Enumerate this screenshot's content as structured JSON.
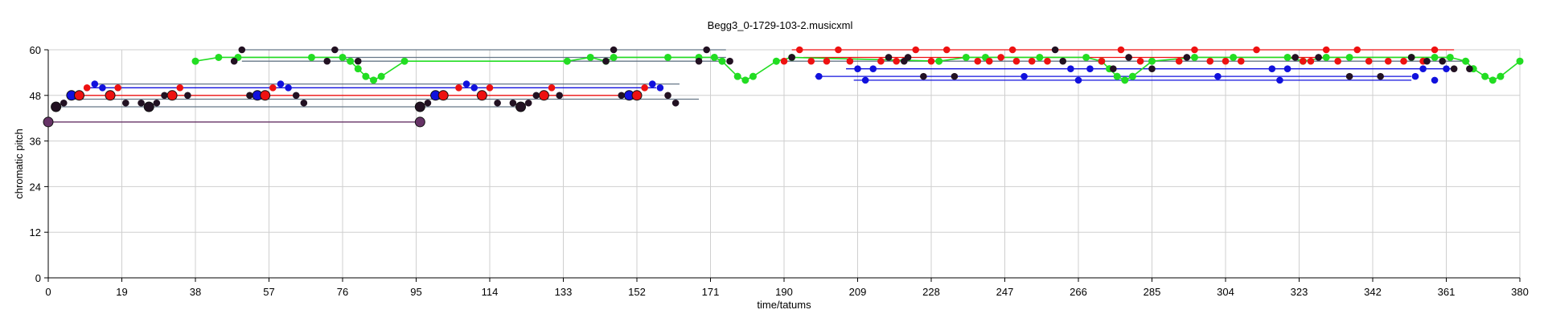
{
  "chart_data": {
    "type": "scatter",
    "title": "Begg3_0-1729-103-2.musicxml",
    "xlabel": "time/tatums",
    "ylabel": "chromatic pitch",
    "xlim": [
      0,
      380
    ],
    "ylim": [
      0,
      60
    ],
    "xticks": [
      0,
      19,
      38,
      57,
      76,
      95,
      114,
      133,
      152,
      171,
      190,
      209,
      228,
      247,
      266,
      285,
      304,
      323,
      342,
      361,
      380
    ],
    "yticks": [
      0,
      12,
      24,
      36,
      48,
      60
    ],
    "grid": true,
    "colors": {
      "green": "#22dd22",
      "red": "#ee1111",
      "blue": "#1111dd",
      "black": "#221122",
      "gray": "#667788",
      "purple": "#663366"
    },
    "spans": [
      {
        "color": "purple",
        "x0": 0,
        "x1": 96,
        "y": 41
      },
      {
        "color": "gray",
        "x0": 2,
        "x1": 122,
        "y": 45
      },
      {
        "color": "gray",
        "x0": 6,
        "x1": 168,
        "y": 47
      },
      {
        "color": "red",
        "x0": 8,
        "x1": 152,
        "y": 48
      },
      {
        "color": "blue",
        "x0": 10,
        "x1": 157,
        "y": 50
      },
      {
        "color": "gray",
        "x0": 12,
        "x1": 163,
        "y": 51
      },
      {
        "color": "gray",
        "x0": 48,
        "x1": 175,
        "y": 58
      },
      {
        "color": "gray",
        "x0": 50,
        "x1": 175,
        "y": 57
      },
      {
        "color": "gray",
        "x0": 50,
        "x1": 175,
        "y": 60
      },
      {
        "color": "gray",
        "x0": 190,
        "x1": 367,
        "y": 57
      },
      {
        "color": "red",
        "x0": 192,
        "x1": 363,
        "y": 60
      },
      {
        "color": "red",
        "x0": 195,
        "x1": 361,
        "y": 58
      },
      {
        "color": "blue",
        "x0": 198,
        "x1": 352,
        "y": 53
      },
      {
        "color": "blue",
        "x0": 206,
        "x1": 363,
        "y": 55
      },
      {
        "color": "blue",
        "x0": 208,
        "x1": 352,
        "y": 52
      }
    ],
    "series": [
      {
        "color": "green",
        "points": [
          [
            38,
            57
          ],
          [
            44,
            58
          ],
          [
            49,
            58
          ],
          [
            68,
            58
          ],
          [
            76,
            58
          ],
          [
            78,
            57
          ],
          [
            80,
            55
          ],
          [
            82,
            53
          ],
          [
            84,
            52
          ],
          [
            86,
            53
          ],
          [
            92,
            57
          ],
          [
            134,
            57
          ],
          [
            140,
            58
          ],
          [
            144,
            57
          ],
          [
            146,
            58
          ],
          [
            160,
            58
          ],
          [
            168,
            58
          ],
          [
            172,
            58
          ],
          [
            174,
            57
          ],
          [
            178,
            53
          ],
          [
            180,
            52
          ],
          [
            182,
            53
          ],
          [
            188,
            57
          ],
          [
            192,
            58
          ],
          [
            230,
            57
          ],
          [
            237,
            58
          ],
          [
            242,
            58
          ],
          [
            256,
            58
          ],
          [
            268,
            58
          ],
          [
            272,
            57
          ],
          [
            274,
            55
          ],
          [
            276,
            53
          ],
          [
            278,
            52
          ],
          [
            280,
            53
          ],
          [
            285,
            57
          ],
          [
            296,
            58
          ],
          [
            306,
            58
          ],
          [
            320,
            58
          ],
          [
            324,
            57
          ],
          [
            330,
            58
          ],
          [
            336,
            58
          ],
          [
            352,
            58
          ],
          [
            358,
            58
          ],
          [
            362,
            58
          ],
          [
            366,
            57
          ],
          [
            368,
            55
          ],
          [
            371,
            53
          ],
          [
            373,
            52
          ],
          [
            375,
            53
          ],
          [
            380,
            57
          ]
        ]
      }
    ],
    "points": [
      {
        "color": "purple",
        "x": 0,
        "y": 41,
        "big": true
      },
      {
        "color": "purple",
        "x": 96,
        "y": 41,
        "big": true
      },
      {
        "color": "black",
        "x": 2,
        "y": 45,
        "big": true
      },
      {
        "color": "black",
        "x": 4,
        "y": 46
      },
      {
        "color": "blue",
        "x": 6,
        "y": 48,
        "big": true
      },
      {
        "color": "red",
        "x": 8,
        "y": 48,
        "big": true
      },
      {
        "color": "red",
        "x": 10,
        "y": 50
      },
      {
        "color": "blue",
        "x": 12,
        "y": 51
      },
      {
        "color": "blue",
        "x": 14,
        "y": 50
      },
      {
        "color": "red",
        "x": 16,
        "y": 48,
        "big": true
      },
      {
        "color": "red",
        "x": 18,
        "y": 50
      },
      {
        "color": "black",
        "x": 20,
        "y": 46
      },
      {
        "color": "black",
        "x": 24,
        "y": 46
      },
      {
        "color": "black",
        "x": 26,
        "y": 45,
        "big": true
      },
      {
        "color": "black",
        "x": 28,
        "y": 46
      },
      {
        "color": "black",
        "x": 30,
        "y": 48
      },
      {
        "color": "red",
        "x": 32,
        "y": 48,
        "big": true
      },
      {
        "color": "red",
        "x": 34,
        "y": 50
      },
      {
        "color": "black",
        "x": 36,
        "y": 48
      },
      {
        "color": "black",
        "x": 48,
        "y": 57
      },
      {
        "color": "black",
        "x": 50,
        "y": 60
      },
      {
        "color": "black",
        "x": 52,
        "y": 48
      },
      {
        "color": "blue",
        "x": 54,
        "y": 48,
        "big": true
      },
      {
        "color": "red",
        "x": 56,
        "y": 48,
        "big": true
      },
      {
        "color": "red",
        "x": 58,
        "y": 50
      },
      {
        "color": "blue",
        "x": 60,
        "y": 51
      },
      {
        "color": "blue",
        "x": 62,
        "y": 50
      },
      {
        "color": "black",
        "x": 64,
        "y": 48
      },
      {
        "color": "black",
        "x": 66,
        "y": 46
      },
      {
        "color": "black",
        "x": 72,
        "y": 57
      },
      {
        "color": "black",
        "x": 74,
        "y": 60
      },
      {
        "color": "black",
        "x": 80,
        "y": 57
      },
      {
        "color": "black",
        "x": 96,
        "y": 45,
        "big": true
      },
      {
        "color": "black",
        "x": 98,
        "y": 46
      },
      {
        "color": "blue",
        "x": 100,
        "y": 48,
        "big": true
      },
      {
        "color": "red",
        "x": 102,
        "y": 48,
        "big": true
      },
      {
        "color": "red",
        "x": 106,
        "y": 50
      },
      {
        "color": "blue",
        "x": 108,
        "y": 51
      },
      {
        "color": "blue",
        "x": 110,
        "y": 50
      },
      {
        "color": "red",
        "x": 112,
        "y": 48,
        "big": true
      },
      {
        "color": "red",
        "x": 114,
        "y": 50
      },
      {
        "color": "black",
        "x": 116,
        "y": 46
      },
      {
        "color": "black",
        "x": 120,
        "y": 46
      },
      {
        "color": "black",
        "x": 122,
        "y": 45,
        "big": true
      },
      {
        "color": "black",
        "x": 124,
        "y": 46
      },
      {
        "color": "black",
        "x": 126,
        "y": 48
      },
      {
        "color": "red",
        "x": 128,
        "y": 48,
        "big": true
      },
      {
        "color": "red",
        "x": 130,
        "y": 50
      },
      {
        "color": "black",
        "x": 132,
        "y": 48
      },
      {
        "color": "black",
        "x": 144,
        "y": 57
      },
      {
        "color": "black",
        "x": 146,
        "y": 60
      },
      {
        "color": "black",
        "x": 148,
        "y": 48
      },
      {
        "color": "blue",
        "x": 150,
        "y": 48,
        "big": true
      },
      {
        "color": "red",
        "x": 152,
        "y": 48,
        "big": true
      },
      {
        "color": "red",
        "x": 154,
        "y": 50
      },
      {
        "color": "blue",
        "x": 156,
        "y": 51
      },
      {
        "color": "blue",
        "x": 158,
        "y": 50
      },
      {
        "color": "black",
        "x": 160,
        "y": 48
      },
      {
        "color": "black",
        "x": 162,
        "y": 46
      },
      {
        "color": "black",
        "x": 168,
        "y": 57
      },
      {
        "color": "black",
        "x": 170,
        "y": 60
      },
      {
        "color": "black",
        "x": 176,
        "y": 57
      },
      {
        "color": "red",
        "x": 190,
        "y": 57
      },
      {
        "color": "black",
        "x": 192,
        "y": 58
      },
      {
        "color": "red",
        "x": 194,
        "y": 60
      },
      {
        "color": "red",
        "x": 197,
        "y": 57
      },
      {
        "color": "blue",
        "x": 199,
        "y": 53
      },
      {
        "color": "red",
        "x": 201,
        "y": 57
      },
      {
        "color": "red",
        "x": 204,
        "y": 60
      },
      {
        "color": "red",
        "x": 207,
        "y": 57
      },
      {
        "color": "blue",
        "x": 209,
        "y": 55
      },
      {
        "color": "blue",
        "x": 211,
        "y": 52
      },
      {
        "color": "blue",
        "x": 213,
        "y": 55
      },
      {
        "color": "red",
        "x": 215,
        "y": 57
      },
      {
        "color": "black",
        "x": 217,
        "y": 58
      },
      {
        "color": "red",
        "x": 219,
        "y": 57
      },
      {
        "color": "black",
        "x": 221,
        "y": 57
      },
      {
        "color": "black",
        "x": 222,
        "y": 58
      },
      {
        "color": "red",
        "x": 224,
        "y": 60
      },
      {
        "color": "black",
        "x": 226,
        "y": 53
      },
      {
        "color": "red",
        "x": 228,
        "y": 57
      },
      {
        "color": "red",
        "x": 232,
        "y": 60
      },
      {
        "color": "black",
        "x": 234,
        "y": 53
      },
      {
        "color": "red",
        "x": 240,
        "y": 57
      },
      {
        "color": "red",
        "x": 243,
        "y": 57
      },
      {
        "color": "red",
        "x": 246,
        "y": 58
      },
      {
        "color": "red",
        "x": 249,
        "y": 60
      },
      {
        "color": "red",
        "x": 250,
        "y": 57
      },
      {
        "color": "blue",
        "x": 252,
        "y": 53
      },
      {
        "color": "red",
        "x": 254,
        "y": 57
      },
      {
        "color": "red",
        "x": 258,
        "y": 57
      },
      {
        "color": "black",
        "x": 260,
        "y": 60
      },
      {
        "color": "black",
        "x": 262,
        "y": 57
      },
      {
        "color": "blue",
        "x": 264,
        "y": 55
      },
      {
        "color": "blue",
        "x": 266,
        "y": 52
      },
      {
        "color": "blue",
        "x": 269,
        "y": 55
      },
      {
        "color": "red",
        "x": 272,
        "y": 57
      },
      {
        "color": "black",
        "x": 275,
        "y": 55
      },
      {
        "color": "red",
        "x": 277,
        "y": 60
      },
      {
        "color": "black",
        "x": 279,
        "y": 58
      },
      {
        "color": "red",
        "x": 282,
        "y": 57
      },
      {
        "color": "black",
        "x": 285,
        "y": 55
      },
      {
        "color": "red",
        "x": 292,
        "y": 57
      },
      {
        "color": "black",
        "x": 294,
        "y": 58
      },
      {
        "color": "red",
        "x": 296,
        "y": 60
      },
      {
        "color": "red",
        "x": 300,
        "y": 57
      },
      {
        "color": "blue",
        "x": 302,
        "y": 53
      },
      {
        "color": "red",
        "x": 304,
        "y": 57
      },
      {
        "color": "red",
        "x": 308,
        "y": 57
      },
      {
        "color": "red",
        "x": 312,
        "y": 60
      },
      {
        "color": "blue",
        "x": 316,
        "y": 55
      },
      {
        "color": "blue",
        "x": 318,
        "y": 52
      },
      {
        "color": "blue",
        "x": 320,
        "y": 55
      },
      {
        "color": "black",
        "x": 322,
        "y": 58
      },
      {
        "color": "red",
        "x": 324,
        "y": 57
      },
      {
        "color": "red",
        "x": 326,
        "y": 57
      },
      {
        "color": "black",
        "x": 328,
        "y": 58
      },
      {
        "color": "red",
        "x": 330,
        "y": 60
      },
      {
        "color": "red",
        "x": 333,
        "y": 57
      },
      {
        "color": "black",
        "x": 336,
        "y": 53
      },
      {
        "color": "red",
        "x": 338,
        "y": 60
      },
      {
        "color": "red",
        "x": 341,
        "y": 57
      },
      {
        "color": "black",
        "x": 344,
        "y": 53
      },
      {
        "color": "red",
        "x": 346,
        "y": 57
      },
      {
        "color": "red",
        "x": 350,
        "y": 57
      },
      {
        "color": "black",
        "x": 352,
        "y": 58
      },
      {
        "color": "red",
        "x": 355,
        "y": 57
      },
      {
        "color": "black",
        "x": 356,
        "y": 57
      },
      {
        "color": "red",
        "x": 358,
        "y": 60
      },
      {
        "color": "black",
        "x": 360,
        "y": 57
      },
      {
        "color": "blue",
        "x": 353,
        "y": 53
      },
      {
        "color": "blue",
        "x": 355,
        "y": 55
      },
      {
        "color": "blue",
        "x": 358,
        "y": 52
      },
      {
        "color": "blue",
        "x": 361,
        "y": 55
      },
      {
        "color": "black",
        "x": 363,
        "y": 55
      },
      {
        "color": "black",
        "x": 367,
        "y": 55
      }
    ]
  }
}
